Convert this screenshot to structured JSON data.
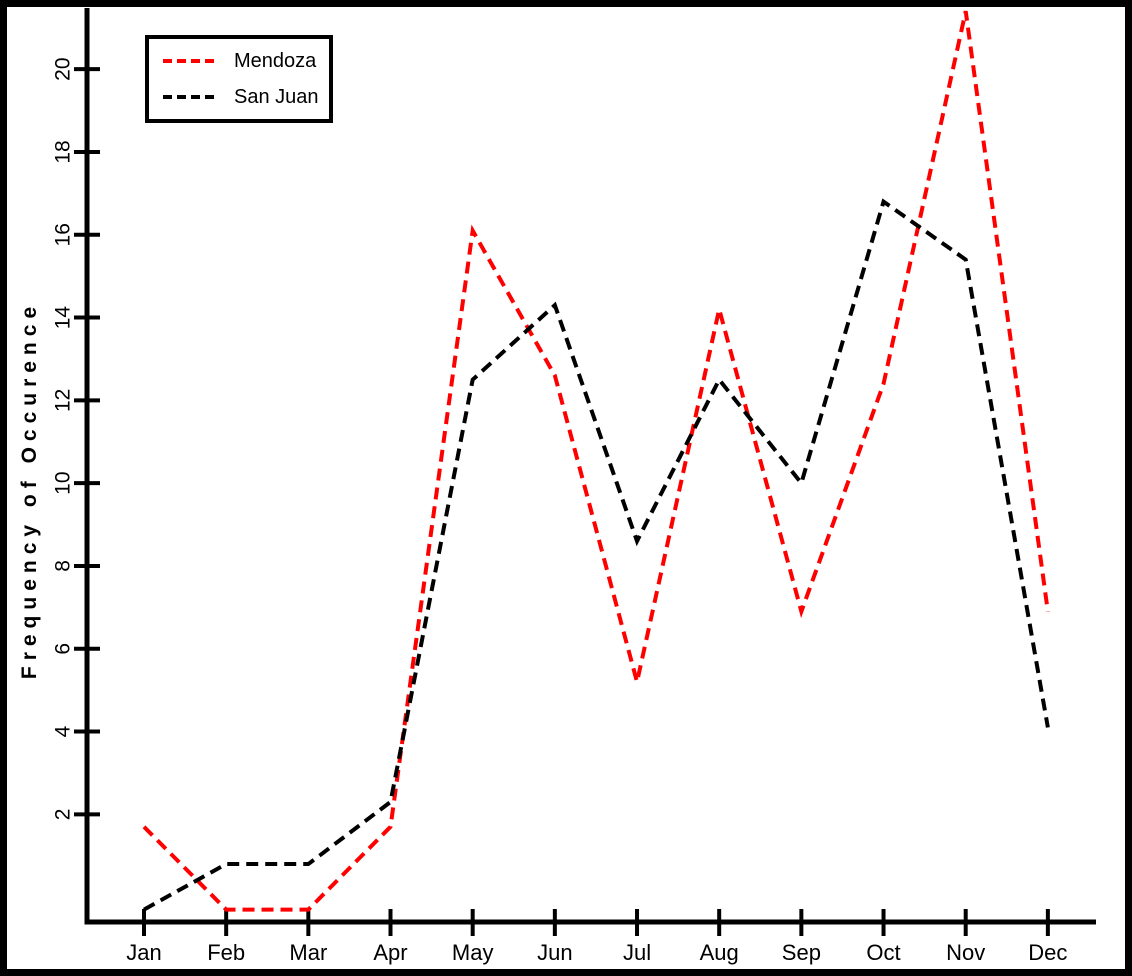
{
  "chart_data": {
    "type": "line",
    "title": "",
    "xlabel": "",
    "ylabel": "Frequency of Occurence",
    "categories": [
      "Jan",
      "Feb",
      "Mar",
      "Apr",
      "May",
      "Jun",
      "Jul",
      "Aug",
      "Sep",
      "Oct",
      "Nov",
      "Dec"
    ],
    "y_ticks": [
      2,
      4,
      6,
      8,
      10,
      12,
      14,
      16,
      18,
      20
    ],
    "ylim": [
      -0.6,
      21.7
    ],
    "grid": false,
    "legend_position": "top-left",
    "line_style": "dashed",
    "series": [
      {
        "name": "Mendoza",
        "color": "#ff0000",
        "values": [
          1.7,
          -0.3,
          -0.3,
          1.7,
          16.1,
          12.6,
          5.2,
          14.2,
          6.9,
          12.4,
          21.4,
          6.9
        ]
      },
      {
        "name": "San Juan",
        "color": "#000000",
        "values": [
          -0.3,
          0.8,
          0.8,
          2.3,
          12.5,
          14.3,
          8.6,
          12.5,
          10.0,
          16.8,
          15.4,
          4.1
        ]
      }
    ]
  }
}
